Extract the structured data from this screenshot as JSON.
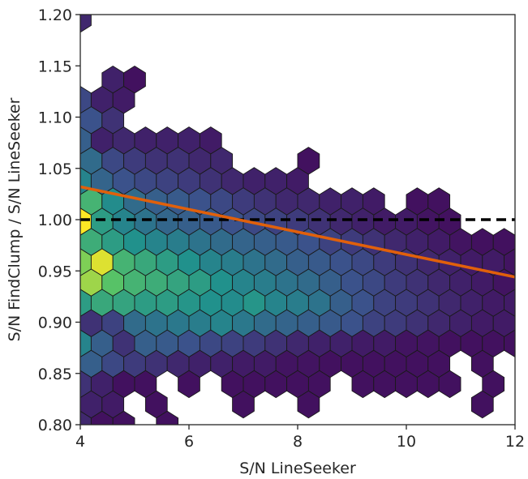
{
  "chart_data": {
    "type": "hexbin",
    "xlabel": "S/N LineSeeker",
    "ylabel": "S/N FindClump / S/N LineSeeker",
    "xlim": [
      4,
      12
    ],
    "ylim": [
      0.8,
      1.2
    ],
    "x_ticks": [
      4,
      6,
      8,
      10,
      12
    ],
    "x_tick_labels": [
      "4",
      "6",
      "8",
      "10",
      "12"
    ],
    "y_ticks": [
      0.8,
      0.85,
      0.9,
      0.95,
      1.0,
      1.05,
      1.1,
      1.15,
      1.2
    ],
    "y_tick_labels": [
      "0.80",
      "0.85",
      "0.90",
      "0.95",
      "1.00",
      "1.05",
      "1.10",
      "1.15",
      "1.20"
    ],
    "colormap": "viridis",
    "colormap_stops": [
      "#440154",
      "#3b528b",
      "#21918c",
      "#5ec962",
      "#fde725"
    ],
    "reference_line": {
      "y": 1.0,
      "style": "dashed",
      "color": "#000000"
    },
    "fit_line": {
      "x": [
        4,
        12
      ],
      "y": [
        1.032,
        0.944
      ],
      "color": "#e1600b"
    },
    "hex_grid": {
      "x0": 4.0,
      "dx": 0.4,
      "y0": 0.8,
      "dy": 0.0198
    },
    "hexbins": [
      [
        0,
        20,
        0.12
      ],
      [
        1,
        17,
        0.1
      ],
      [
        2,
        17,
        0.05
      ],
      [
        0,
        16,
        0.22
      ],
      [
        1,
        16,
        0.1
      ],
      [
        2,
        16,
        0.08
      ],
      [
        0,
        15,
        0.25
      ],
      [
        1,
        15,
        0.15
      ],
      [
        0,
        14,
        0.3
      ],
      [
        1,
        14,
        0.1
      ],
      [
        2,
        14,
        0.12
      ],
      [
        3,
        14,
        0.1
      ],
      [
        4,
        14,
        0.1
      ],
      [
        5,
        14,
        0.1
      ],
      [
        6,
        14,
        0.08
      ],
      [
        0,
        13,
        0.35
      ],
      [
        1,
        13,
        0.22
      ],
      [
        2,
        13,
        0.18
      ],
      [
        3,
        13,
        0.15
      ],
      [
        4,
        13,
        0.15
      ],
      [
        5,
        13,
        0.12
      ],
      [
        6,
        13,
        0.12
      ],
      [
        10,
        13,
        0.05
      ],
      [
        0,
        12,
        0.45
      ],
      [
        1,
        12,
        0.32
      ],
      [
        2,
        12,
        0.25
      ],
      [
        3,
        12,
        0.22
      ],
      [
        4,
        12,
        0.2
      ],
      [
        5,
        12,
        0.18
      ],
      [
        6,
        12,
        0.15
      ],
      [
        7,
        12,
        0.12
      ],
      [
        8,
        12,
        0.1
      ],
      [
        9,
        12,
        0.1
      ],
      [
        10,
        12,
        0.08
      ],
      [
        0,
        11,
        0.65
      ],
      [
        1,
        11,
        0.48
      ],
      [
        2,
        11,
        0.35
      ],
      [
        3,
        11,
        0.3
      ],
      [
        4,
        11,
        0.28
      ],
      [
        5,
        11,
        0.25
      ],
      [
        6,
        11,
        0.22
      ],
      [
        7,
        11,
        0.18
      ],
      [
        8,
        11,
        0.15
      ],
      [
        9,
        11,
        0.12
      ],
      [
        10,
        11,
        0.12
      ],
      [
        11,
        11,
        0.1
      ],
      [
        12,
        11,
        0.1
      ],
      [
        13,
        11,
        0.08
      ],
      [
        15,
        11,
        0.05
      ],
      [
        16,
        11,
        0.05
      ],
      [
        0,
        10,
        1.0
      ],
      [
        1,
        10,
        0.55
      ],
      [
        2,
        10,
        0.45
      ],
      [
        3,
        10,
        0.38
      ],
      [
        4,
        10,
        0.33
      ],
      [
        5,
        10,
        0.3
      ],
      [
        6,
        10,
        0.28
      ],
      [
        7,
        10,
        0.25
      ],
      [
        8,
        10,
        0.22
      ],
      [
        9,
        10,
        0.2
      ],
      [
        10,
        10,
        0.18
      ],
      [
        11,
        10,
        0.15
      ],
      [
        12,
        10,
        0.12
      ],
      [
        13,
        10,
        0.1
      ],
      [
        14,
        10,
        0.08
      ],
      [
        15,
        10,
        0.08
      ],
      [
        16,
        10,
        0.06
      ],
      [
        17,
        10,
        0.05
      ],
      [
        0,
        9,
        0.62
      ],
      [
        1,
        9,
        0.55
      ],
      [
        2,
        9,
        0.5
      ],
      [
        3,
        9,
        0.45
      ],
      [
        4,
        9,
        0.42
      ],
      [
        5,
        9,
        0.38
      ],
      [
        6,
        9,
        0.35
      ],
      [
        7,
        9,
        0.32
      ],
      [
        8,
        9,
        0.3
      ],
      [
        9,
        9,
        0.28
      ],
      [
        10,
        9,
        0.25
      ],
      [
        11,
        9,
        0.2
      ],
      [
        12,
        9,
        0.18
      ],
      [
        13,
        9,
        0.15
      ],
      [
        14,
        9,
        0.12
      ],
      [
        15,
        9,
        0.1
      ],
      [
        16,
        9,
        0.08
      ],
      [
        17,
        9,
        0.06
      ],
      [
        18,
        9,
        0.05
      ],
      [
        19,
        9,
        0.05
      ],
      [
        20,
        9,
        0.05
      ],
      [
        0,
        8,
        0.8
      ],
      [
        1,
        8,
        0.95
      ],
      [
        2,
        8,
        0.65
      ],
      [
        3,
        8,
        0.6
      ],
      [
        4,
        8,
        0.55
      ],
      [
        5,
        8,
        0.5
      ],
      [
        6,
        8,
        0.45
      ],
      [
        7,
        8,
        0.42
      ],
      [
        8,
        8,
        0.38
      ],
      [
        9,
        8,
        0.35
      ],
      [
        10,
        8,
        0.3
      ],
      [
        11,
        8,
        0.28
      ],
      [
        12,
        8,
        0.25
      ],
      [
        13,
        8,
        0.22
      ],
      [
        14,
        8,
        0.18
      ],
      [
        15,
        8,
        0.15
      ],
      [
        16,
        8,
        0.12
      ],
      [
        17,
        8,
        0.1
      ],
      [
        18,
        8,
        0.08
      ],
      [
        19,
        8,
        0.08
      ],
      [
        20,
        8,
        0.06
      ],
      [
        21,
        8,
        0.05
      ],
      [
        22,
        8,
        0.05
      ],
      [
        0,
        7,
        0.85
      ],
      [
        1,
        7,
        0.72
      ],
      [
        2,
        7,
        0.65
      ],
      [
        3,
        7,
        0.62
      ],
      [
        4,
        7,
        0.58
      ],
      [
        5,
        7,
        0.55
      ],
      [
        6,
        7,
        0.5
      ],
      [
        7,
        7,
        0.45
      ],
      [
        8,
        7,
        0.42
      ],
      [
        9,
        7,
        0.38
      ],
      [
        10,
        7,
        0.35
      ],
      [
        11,
        7,
        0.3
      ],
      [
        12,
        7,
        0.25
      ],
      [
        13,
        7,
        0.22
      ],
      [
        14,
        7,
        0.18
      ],
      [
        15,
        7,
        0.15
      ],
      [
        16,
        7,
        0.12
      ],
      [
        17,
        7,
        0.1
      ],
      [
        18,
        7,
        0.08
      ],
      [
        19,
        7,
        0.06
      ],
      [
        20,
        7,
        0.06
      ],
      [
        21,
        7,
        0.05
      ],
      [
        22,
        7,
        0.05
      ],
      [
        23,
        7,
        0.05
      ],
      [
        24,
        7,
        0.05
      ],
      [
        0,
        6,
        0.55
      ],
      [
        1,
        6,
        0.6
      ],
      [
        2,
        6,
        0.58
      ],
      [
        3,
        6,
        0.55
      ],
      [
        4,
        6,
        0.55
      ],
      [
        5,
        6,
        0.52
      ],
      [
        6,
        6,
        0.5
      ],
      [
        7,
        6,
        0.48
      ],
      [
        8,
        6,
        0.52
      ],
      [
        9,
        6,
        0.45
      ],
      [
        10,
        6,
        0.42
      ],
      [
        11,
        6,
        0.38
      ],
      [
        12,
        6,
        0.3
      ],
      [
        13,
        6,
        0.25
      ],
      [
        14,
        6,
        0.2
      ],
      [
        15,
        6,
        0.18
      ],
      [
        16,
        6,
        0.15
      ],
      [
        17,
        6,
        0.12
      ],
      [
        18,
        6,
        0.1
      ],
      [
        19,
        6,
        0.08
      ],
      [
        20,
        6,
        0.08
      ],
      [
        21,
        6,
        0.06
      ],
      [
        22,
        6,
        0.06
      ],
      [
        23,
        6,
        0.05
      ],
      [
        24,
        6,
        0.05
      ],
      [
        25,
        6,
        0.05
      ],
      [
        26,
        6,
        0.05
      ],
      [
        0,
        5,
        0.15
      ],
      [
        1,
        5,
        0.2
      ],
      [
        2,
        5,
        0.35
      ],
      [
        3,
        5,
        0.38
      ],
      [
        4,
        5,
        0.4
      ],
      [
        5,
        5,
        0.42
      ],
      [
        6,
        5,
        0.45
      ],
      [
        7,
        5,
        0.4
      ],
      [
        8,
        5,
        0.35
      ],
      [
        9,
        5,
        0.32
      ],
      [
        10,
        5,
        0.3
      ],
      [
        11,
        5,
        0.28
      ],
      [
        12,
        5,
        0.25
      ],
      [
        13,
        5,
        0.2
      ],
      [
        14,
        5,
        0.18
      ],
      [
        15,
        5,
        0.15
      ],
      [
        16,
        5,
        0.12
      ],
      [
        17,
        5,
        0.1
      ],
      [
        18,
        5,
        0.08
      ],
      [
        19,
        5,
        0.08
      ],
      [
        20,
        5,
        0.06
      ],
      [
        21,
        5,
        0.06
      ],
      [
        22,
        5,
        0.05
      ],
      [
        23,
        5,
        0.05
      ],
      [
        24,
        5,
        0.05
      ],
      [
        0,
        4,
        0.45
      ],
      [
        1,
        4,
        0.3
      ],
      [
        2,
        4,
        0.15
      ],
      [
        3,
        4,
        0.3
      ],
      [
        4,
        4,
        0.28
      ],
      [
        5,
        4,
        0.25
      ],
      [
        6,
        4,
        0.22
      ],
      [
        7,
        4,
        0.2
      ],
      [
        8,
        4,
        0.18
      ],
      [
        9,
        4,
        0.15
      ],
      [
        10,
        4,
        0.12
      ],
      [
        11,
        4,
        0.1
      ],
      [
        12,
        4,
        0.1
      ],
      [
        13,
        4,
        0.08
      ],
      [
        14,
        4,
        0.08
      ],
      [
        15,
        4,
        0.06
      ],
      [
        16,
        4,
        0.06
      ],
      [
        17,
        4,
        0.05
      ],
      [
        18,
        4,
        0.05
      ],
      [
        19,
        4,
        0.05
      ],
      [
        20,
        4,
        0.05
      ],
      [
        21,
        4,
        0.05
      ],
      [
        23,
        4,
        0.05
      ],
      [
        24,
        4,
        0.05
      ],
      [
        0,
        3,
        0.3
      ],
      [
        1,
        3,
        0.22
      ],
      [
        2,
        3,
        0.18
      ],
      [
        3,
        3,
        0.15
      ],
      [
        4,
        3,
        0.12
      ],
      [
        5,
        3,
        0.1
      ],
      [
        6,
        3,
        0.1
      ],
      [
        7,
        3,
        0.08
      ],
      [
        8,
        3,
        0.08
      ],
      [
        9,
        3,
        0.06
      ],
      [
        10,
        3,
        0.06
      ],
      [
        11,
        3,
        0.05
      ],
      [
        12,
        3,
        0.05
      ],
      [
        13,
        3,
        0.05
      ],
      [
        14,
        3,
        0.05
      ],
      [
        15,
        3,
        0.05
      ],
      [
        16,
        3,
        0.05
      ],
      [
        18,
        3,
        0.05
      ],
      [
        20,
        3,
        0.05
      ],
      [
        22,
        3,
        0.05
      ],
      [
        0,
        2,
        0.15
      ],
      [
        1,
        2,
        0.1
      ],
      [
        2,
        2,
        0.05
      ],
      [
        3,
        2,
        0.05
      ],
      [
        5,
        2,
        0.05
      ],
      [
        7,
        2,
        0.05
      ],
      [
        8,
        2,
        0.05
      ],
      [
        9,
        2,
        0.05
      ],
      [
        10,
        2,
        0.05
      ],
      [
        11,
        2,
        0.05
      ],
      [
        13,
        2,
        0.05
      ],
      [
        14,
        2,
        0.05
      ],
      [
        15,
        2,
        0.05
      ],
      [
        16,
        2,
        0.05
      ],
      [
        17,
        2,
        0.05
      ],
      [
        19,
        2,
        0.05
      ],
      [
        21,
        2,
        0.05
      ],
      [
        0,
        1,
        0.1
      ],
      [
        1,
        1,
        0.08
      ],
      [
        3,
        1,
        0.05
      ],
      [
        7,
        1,
        0.05
      ],
      [
        10,
        1,
        0.05
      ],
      [
        18,
        1,
        0.05
      ],
      [
        0,
        0,
        0.12
      ],
      [
        1,
        0,
        0.05
      ],
      [
        2,
        0,
        0.05
      ],
      [
        4,
        0,
        0.05
      ],
      [
        3,
        -1,
        0.05
      ],
      [
        5,
        -1,
        0.05
      ],
      [
        2,
        -3,
        0.05
      ],
      [
        4,
        -3,
        0.05
      ],
      [
        12,
        -3,
        0.05
      ]
    ]
  }
}
